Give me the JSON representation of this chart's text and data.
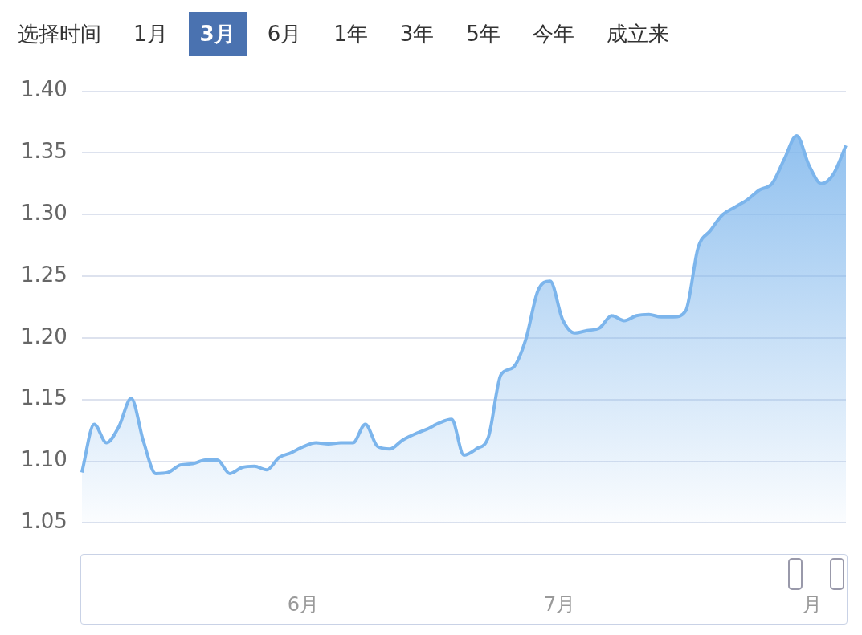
{
  "chart_data": {
    "type": "area",
    "annotations": [
      "选择时间",
      "1月",
      "3月",
      "6月",
      "1年",
      "3年",
      "5年",
      "今年",
      "成立来",
      "6月",
      "7月",
      "月"
    ],
    "categories": [
      null,
      null,
      null,
      null,
      null,
      null,
      null,
      null,
      null,
      null,
      null,
      null,
      null,
      null,
      null,
      null,
      null,
      null,
      null,
      null,
      null,
      null,
      null,
      null,
      null,
      null,
      null,
      null,
      null,
      null,
      null,
      null,
      null,
      null,
      null,
      null,
      null,
      null,
      null,
      null,
      null,
      null,
      null,
      null,
      null,
      null,
      null,
      null,
      null,
      null,
      null,
      null,
      null,
      null,
      null,
      null,
      null,
      null,
      null,
      null,
      null,
      null,
      null
    ],
    "series": [
      {
        "color": "#7cb5ec",
        "values": [
          1.091,
          1.13,
          1.115,
          1.128,
          1.151,
          1.116,
          1.09,
          1.091,
          1.097,
          1.098,
          1.101,
          1.101,
          1.09,
          1.095,
          1.096,
          1.093,
          1.103,
          1.107,
          1.112,
          1.115,
          1.114,
          1.115,
          1.115,
          1.13,
          1.112,
          1.11,
          1.117,
          1.122,
          1.126,
          1.131,
          1.134,
          1.105,
          1.11,
          1.12,
          1.17,
          1.176,
          1.198,
          1.238,
          1.246,
          1.215,
          1.204,
          1.206,
          1.208,
          1.218,
          1.214,
          1.218,
          1.219,
          1.217,
          1.217,
          1.222,
          1.273,
          1.287,
          1.3,
          1.306,
          1.312,
          1.32,
          1.325,
          1.345,
          1.364,
          1.34,
          1.325,
          1.333,
          1.356
        ]
      }
    ],
    "ylim": [
      1.05,
      1.4
    ],
    "yticks": [
      {
        "value": 1.05,
        "label": "1.05"
      },
      {
        "value": 1.1,
        "label": "1.10"
      },
      {
        "value": 1.15,
        "label": "1.15"
      },
      {
        "value": 1.2,
        "label": "1.20"
      },
      {
        "value": 1.25,
        "label": "1.25"
      },
      {
        "value": 1.3,
        "label": "1.30"
      },
      {
        "value": 1.35,
        "label": "1.35"
      },
      {
        "value": 1.4,
        "label": "1.40"
      }
    ],
    "grid": "y",
    "legend": false,
    "marker": "none",
    "line_style": "solid"
  }
}
